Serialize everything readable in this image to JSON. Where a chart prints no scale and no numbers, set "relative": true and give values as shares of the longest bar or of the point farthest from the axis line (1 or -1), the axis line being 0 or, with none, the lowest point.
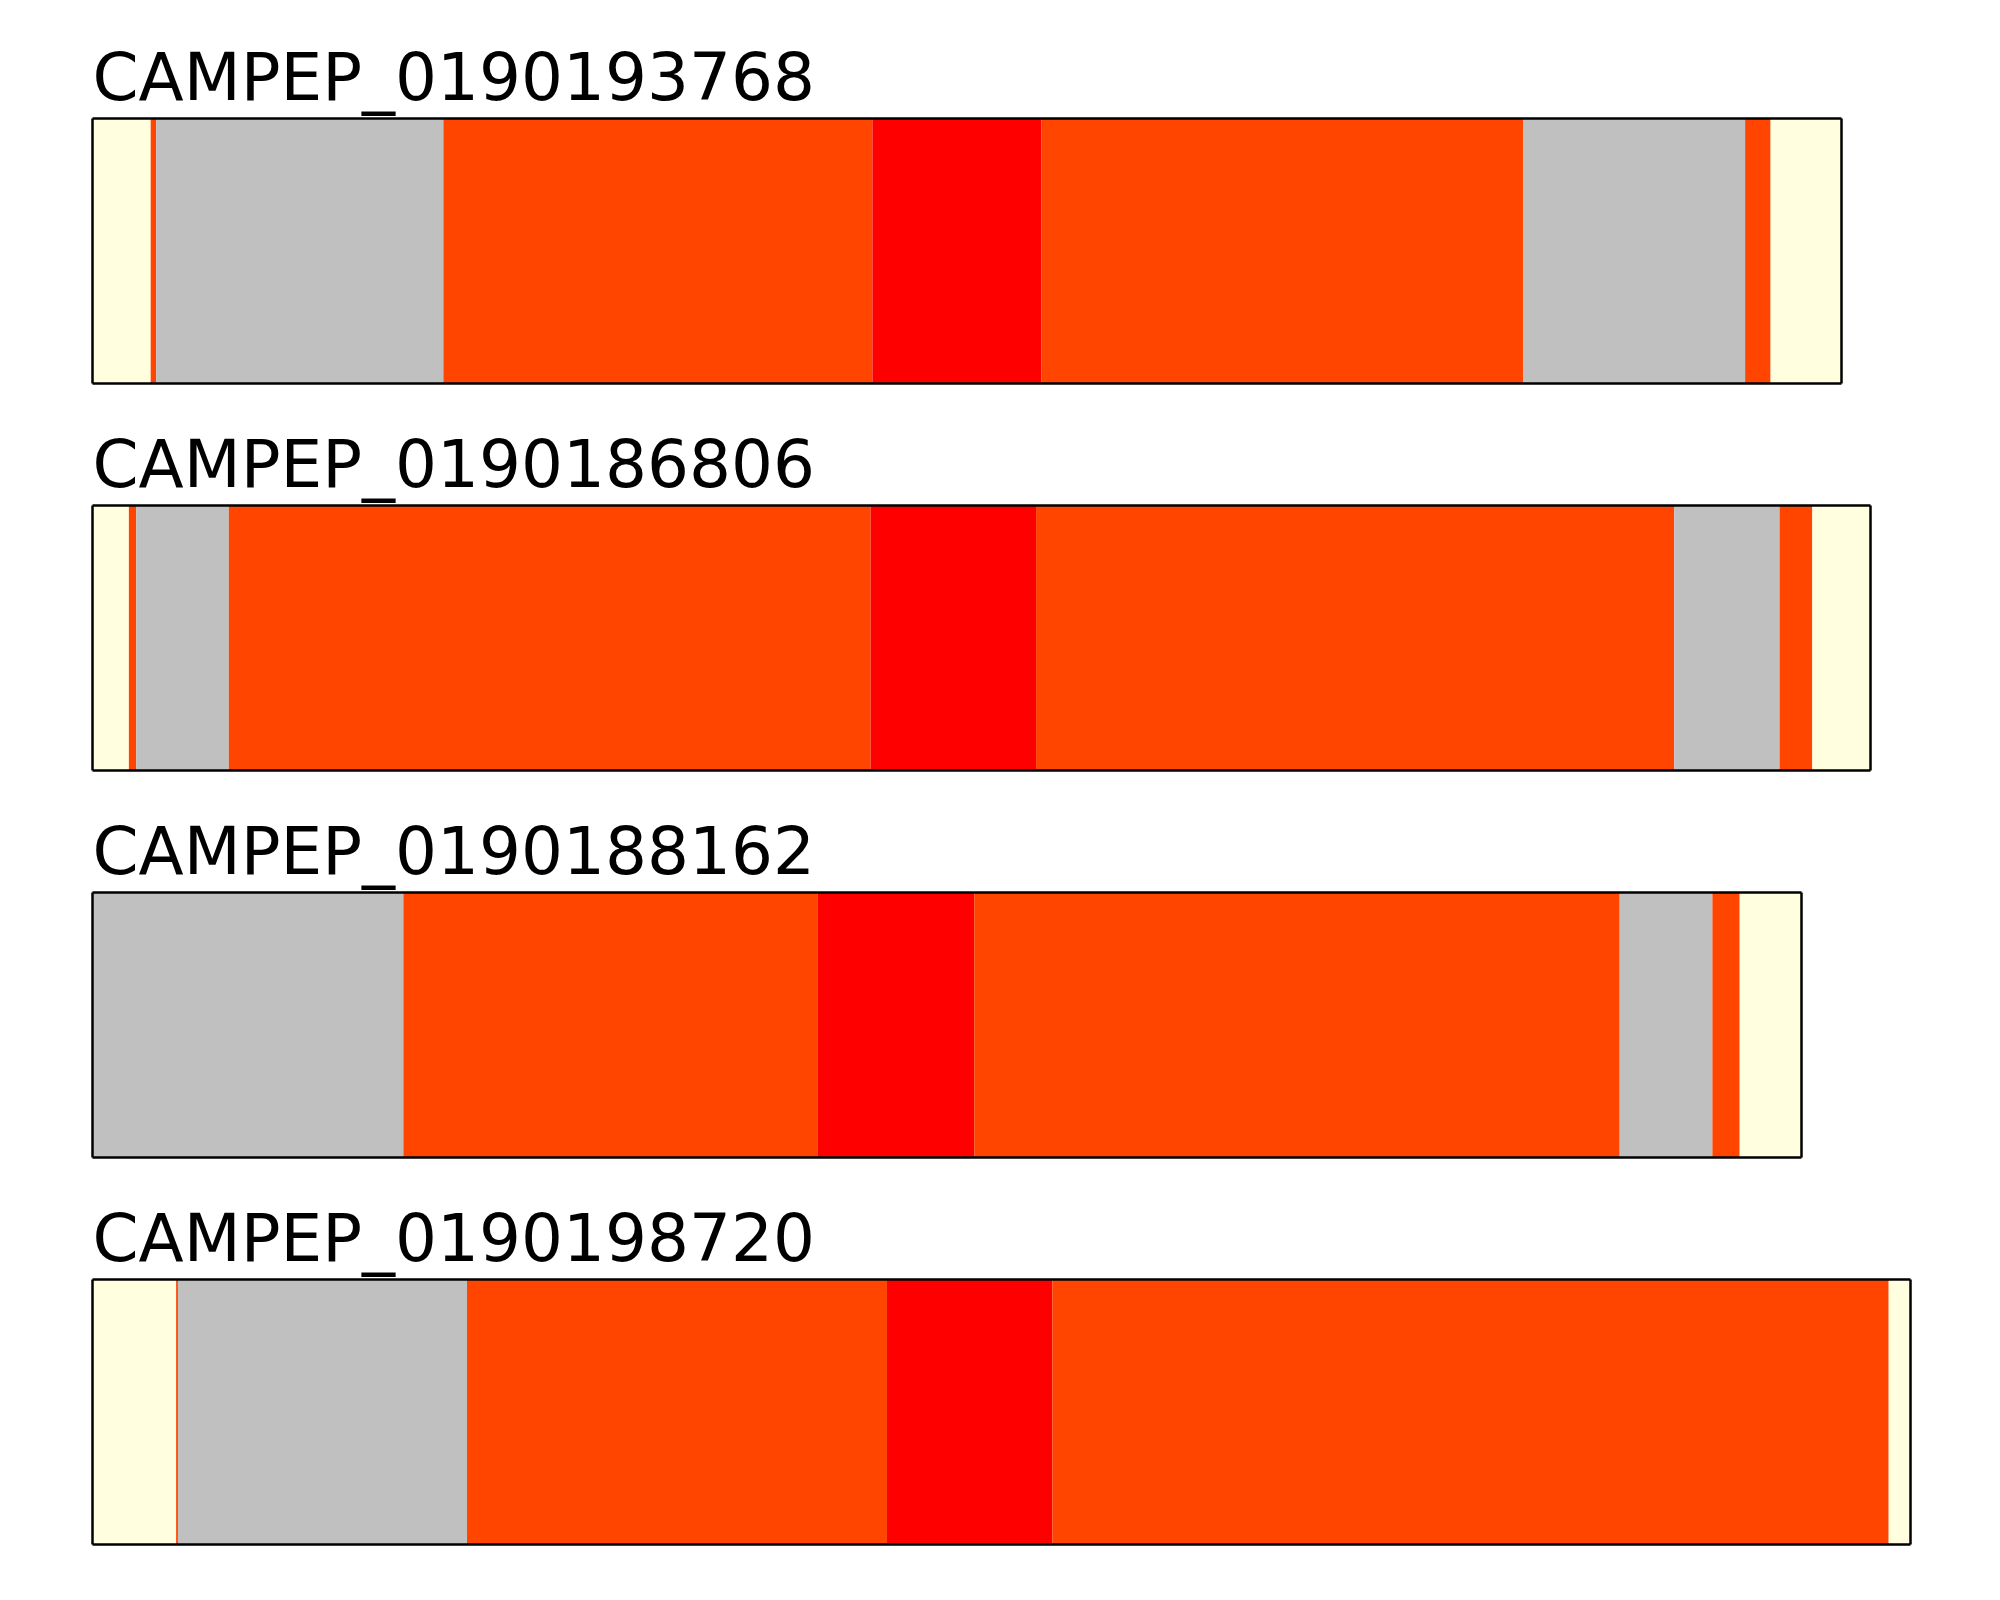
{
  "chart_data": {
    "type": "bar",
    "orientation": "horizontal",
    "stacked": true,
    "relative": true,
    "categories": [
      "CAMPEP_0190193768",
      "CAMPEP_0190186806",
      "CAMPEP_0190188162",
      "CAMPEP_0190198720"
    ],
    "series": [
      {
        "color": "#ffffe0",
        "values": [
          0.032,
          0.02,
          null,
          0.046
        ]
      },
      {
        "color": "#ff4500",
        "values": [
          0.003,
          0.004,
          null,
          0.001
        ]
      },
      {
        "color": "#c0c0c0",
        "values": [
          0.158,
          0.051,
          0.171,
          0.159
        ]
      },
      {
        "color": "#ff4500",
        "values": [
          0.236,
          0.353,
          0.228,
          0.231
        ]
      },
      {
        "color": "#ff0000",
        "values": [
          0.093,
          0.091,
          0.086,
          0.091
        ]
      },
      {
        "color": "#ff4500",
        "values": [
          0.265,
          0.351,
          0.355,
          0.46
        ]
      },
      {
        "color": "#c0c0c0",
        "values": [
          0.122,
          0.058,
          0.051,
          null
        ]
      },
      {
        "color": "#ff4500",
        "values": [
          0.014,
          0.018,
          0.015,
          null
        ]
      },
      {
        "color": "#ffffe0",
        "values": [
          0.039,
          0.032,
          0.034,
          0.012
        ]
      }
    ]
  }
}
